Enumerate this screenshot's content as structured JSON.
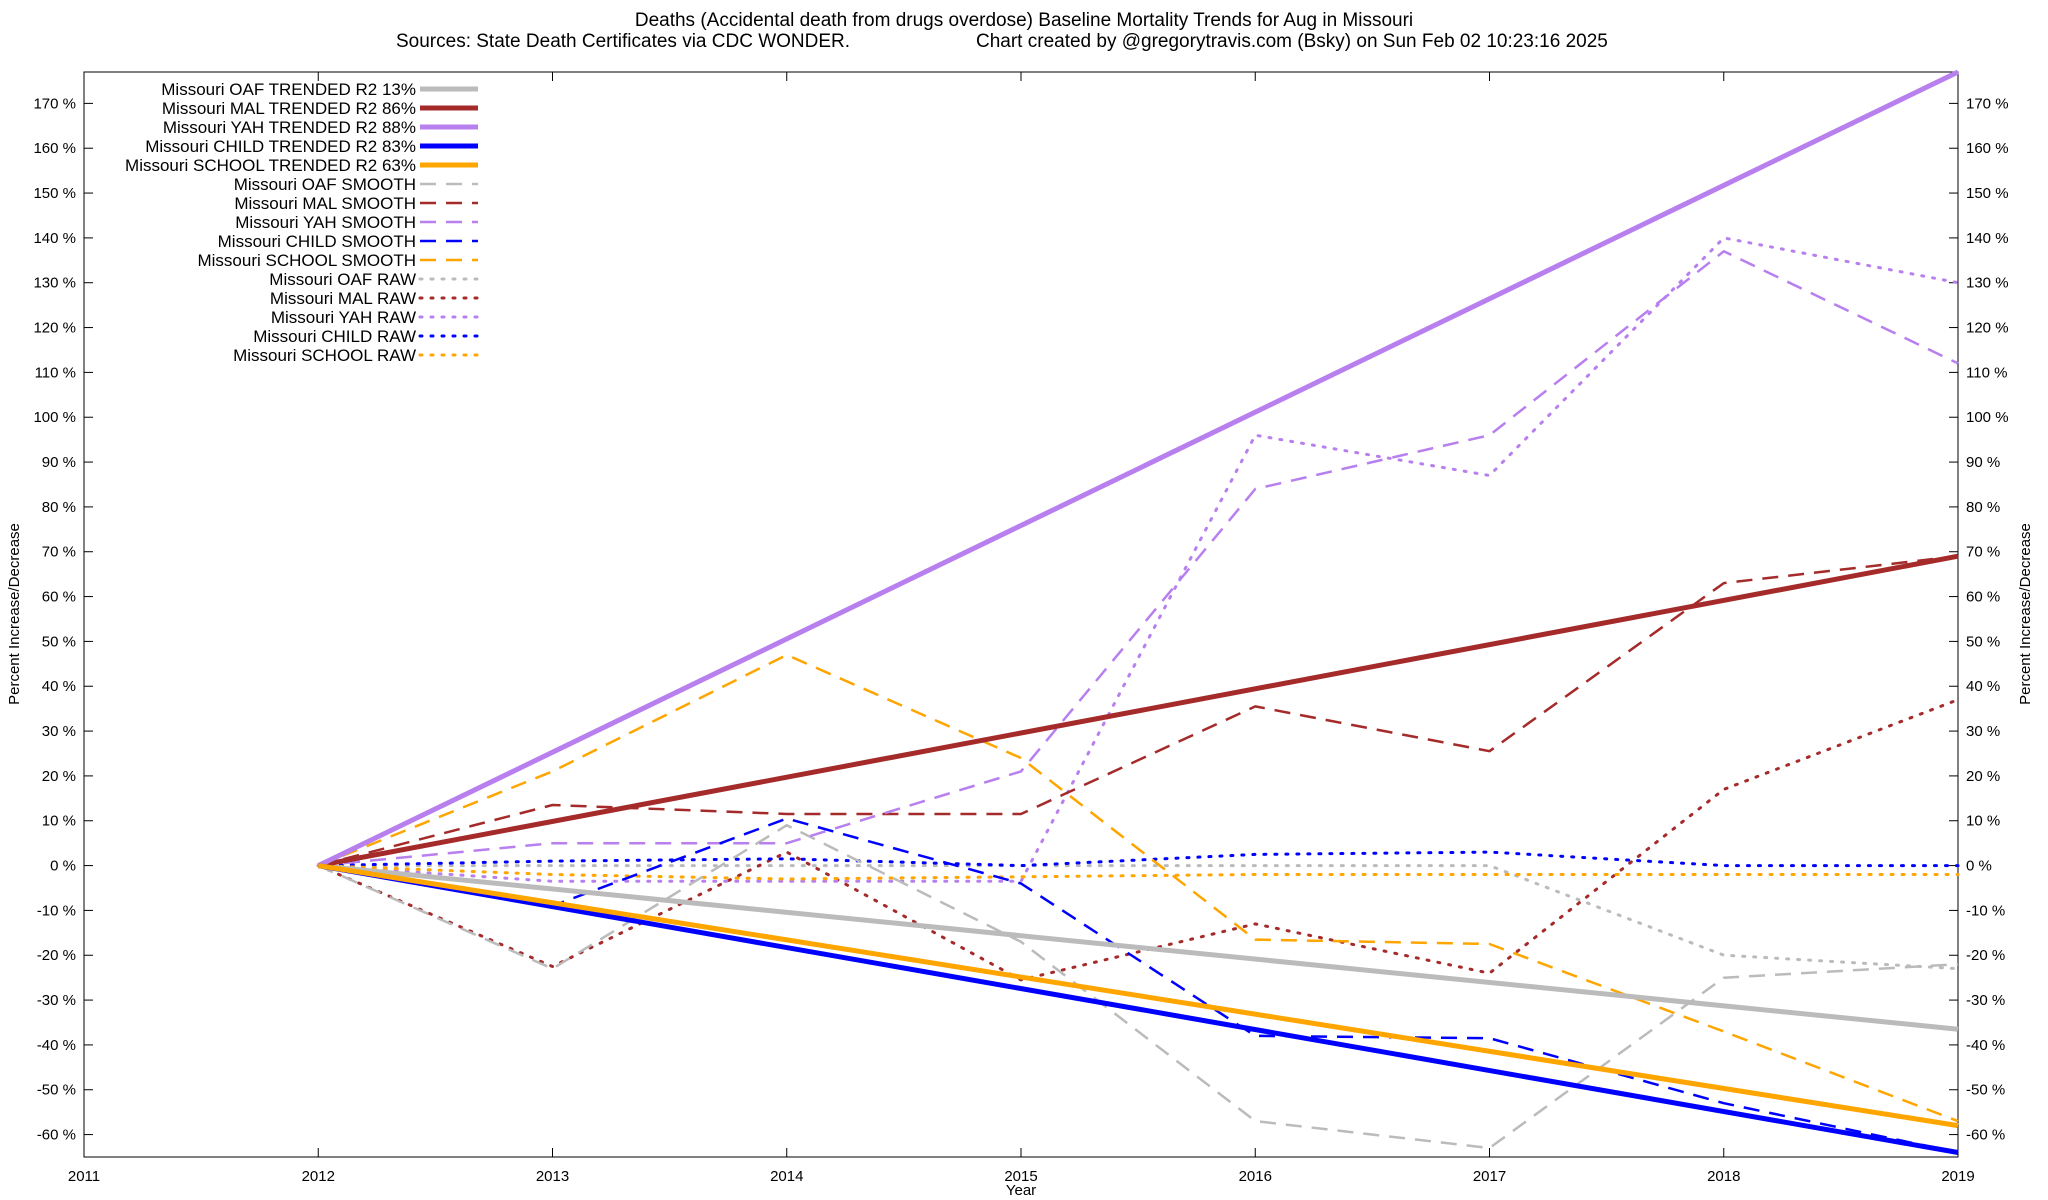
{
  "chart_data": {
    "type": "line",
    "title": "Deaths (Accidental death from drugs overdose)  Baseline Mortality Trends for Aug in Missouri",
    "subtitle_left": "Sources: State Death Certificates via CDC WONDER.",
    "subtitle_right": "Chart created by @gregorytravis.com (Bsky) on Sun Feb 02 10:23:16 2025",
    "xlabel": "Year",
    "ylabel": "Percent Increase/Decrease",
    "xlim": [
      2011,
      2019
    ],
    "ylim": [
      -65,
      177
    ],
    "x_ticks": [
      "2011",
      "2012",
      "2013",
      "2014",
      "2015",
      "2016",
      "2017",
      "2018",
      "2019"
    ],
    "y_ticks": [
      {
        "value": 170,
        "label": "170 %"
      },
      {
        "value": 160,
        "label": "160 %"
      },
      {
        "value": 150,
        "label": "150 %"
      },
      {
        "value": 140,
        "label": "140 %"
      },
      {
        "value": 130,
        "label": "130 %"
      },
      {
        "value": 120,
        "label": "120 %"
      },
      {
        "value": 110,
        "label": "110 %"
      },
      {
        "value": 100,
        "label": "100 %"
      },
      {
        "value": 90,
        "label": "90 %"
      },
      {
        "value": 80,
        "label": "80 %"
      },
      {
        "value": 70,
        "label": "70 %"
      },
      {
        "value": 60,
        "label": "60 %"
      },
      {
        "value": 50,
        "label": "50 %"
      },
      {
        "value": 40,
        "label": "40 %"
      },
      {
        "value": 30,
        "label": "30 %"
      },
      {
        "value": 20,
        "label": "20 %"
      },
      {
        "value": 10,
        "label": "10 %"
      },
      {
        "value": 0,
        "label": "0 %"
      },
      {
        "value": -10,
        "label": "-10 %"
      },
      {
        "value": -20,
        "label": "-20 %"
      },
      {
        "value": -30,
        "label": "-30 %"
      },
      {
        "value": -40,
        "label": "-40 %"
      },
      {
        "value": -50,
        "label": "-50 %"
      },
      {
        "value": -60,
        "label": "-60 %"
      }
    ],
    "legend_position": "top-left",
    "grid": false,
    "colors": {
      "oaf": "#bbbbbb",
      "mal": "#a52a2a",
      "yah": "#b87fef",
      "child": "#0000ff",
      "school": "#ffa500"
    },
    "series": [
      {
        "name": "Missouri OAF TRENDED R2  13%",
        "style": "solid",
        "color": "#bbbbbb",
        "x": [
          2012,
          2019
        ],
        "y": [
          0,
          -36.5
        ]
      },
      {
        "name": "Missouri MAL TRENDED R2  86%",
        "style": "solid",
        "color": "#a52a2a",
        "x": [
          2012,
          2019
        ],
        "y": [
          0,
          69
        ]
      },
      {
        "name": "Missouri YAH TRENDED R2  88%",
        "style": "solid",
        "color": "#b87fef",
        "x": [
          2012,
          2019
        ],
        "y": [
          0,
          177
        ]
      },
      {
        "name": "Missouri CHILD TRENDED R2  83%",
        "style": "solid",
        "color": "#0000ff",
        "x": [
          2012,
          2019
        ],
        "y": [
          0,
          -64
        ]
      },
      {
        "name": "Missouri SCHOOL TRENDED R2  63%",
        "style": "solid",
        "color": "#ffa500",
        "x": [
          2012,
          2019
        ],
        "y": [
          0,
          -58
        ]
      },
      {
        "name": "Missouri OAF SMOOTH",
        "style": "dashed",
        "color": "#bbbbbb",
        "x": [
          2012,
          2013,
          2014,
          2015,
          2016,
          2017,
          2018,
          2019
        ],
        "y": [
          0,
          -23,
          9,
          -17,
          -57,
          -63,
          -25,
          -22
        ]
      },
      {
        "name": "Missouri MAL SMOOTH",
        "style": "dashed",
        "color": "#a52a2a",
        "x": [
          2012,
          2013,
          2014,
          2015,
          2016,
          2017,
          2018,
          2019
        ],
        "y": [
          0,
          13.5,
          11.5,
          11.5,
          35.5,
          25.5,
          63,
          69
        ]
      },
      {
        "name": "Missouri YAH SMOOTH",
        "style": "dashed",
        "color": "#b87fef",
        "x": [
          2012,
          2013,
          2014,
          2015,
          2016,
          2017,
          2018,
          2019
        ],
        "y": [
          0,
          5,
          5,
          21,
          84,
          96,
          137,
          112
        ]
      },
      {
        "name": "Missouri CHILD SMOOTH",
        "style": "dashed",
        "color": "#0000ff",
        "x": [
          2012,
          2013,
          2014,
          2015,
          2016,
          2017,
          2018,
          2019
        ],
        "y": [
          0,
          -9,
          10.5,
          -4,
          -38,
          -38.5,
          -53,
          -64
        ]
      },
      {
        "name": "Missouri SCHOOL SMOOTH",
        "style": "dashed",
        "color": "#ffa500",
        "x": [
          2012,
          2013,
          2014,
          2015,
          2016,
          2017,
          2018,
          2019
        ],
        "y": [
          0,
          21,
          47,
          24,
          -16.5,
          -17.5,
          -37,
          -57
        ]
      },
      {
        "name": "Missouri OAF RAW",
        "style": "dotted",
        "color": "#bbbbbb",
        "x": [
          2012,
          2013,
          2014,
          2015,
          2016,
          2017,
          2018,
          2019
        ],
        "y": [
          0,
          0,
          0,
          0,
          0,
          0,
          -20,
          -23
        ]
      },
      {
        "name": "Missouri MAL RAW",
        "style": "dotted",
        "color": "#a52a2a",
        "x": [
          2012,
          2013,
          2014,
          2015,
          2016,
          2017,
          2018,
          2019
        ],
        "y": [
          0,
          -22.5,
          3,
          -25.5,
          -13,
          -24,
          17,
          37
        ]
      },
      {
        "name": "Missouri YAH RAW",
        "style": "dotted",
        "color": "#b87fef",
        "x": [
          2012,
          2013,
          2014,
          2015,
          2016,
          2017,
          2018,
          2019
        ],
        "y": [
          0,
          -3.5,
          -3.5,
          -3.5,
          96,
          87,
          140,
          130
        ]
      },
      {
        "name": "Missouri CHILD RAW",
        "style": "dotted",
        "color": "#0000ff",
        "x": [
          2012,
          2013,
          2014,
          2015,
          2016,
          2017,
          2018,
          2019
        ],
        "y": [
          0,
          1,
          1.5,
          0,
          2.5,
          3,
          0,
          0
        ]
      },
      {
        "name": "Missouri SCHOOL RAW",
        "style": "dotted",
        "color": "#ffa500",
        "x": [
          2012,
          2013,
          2014,
          2015,
          2016,
          2017,
          2018,
          2019
        ],
        "y": [
          0,
          -2,
          -3,
          -2.5,
          -2,
          -2,
          -2,
          -2
        ]
      }
    ]
  }
}
